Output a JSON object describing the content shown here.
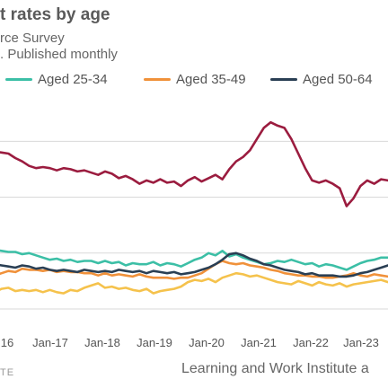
{
  "chart_data": {
    "type": "line",
    "title": "t rates by age",
    "subtitle": "rce Survey",
    "subtitle2": ". Published monthly",
    "x_tick_labels": [
      "16",
      "Jan-17",
      "Jan-18",
      "Jan-19",
      "Jan-20",
      "Jan-21",
      "Jan-22",
      "Jan-23"
    ],
    "grid": "horizontal",
    "series": [
      {
        "name": "",
        "color": "#9b1c3f",
        "values": [
          14.1,
          14.0,
          13.9,
          13.5,
          13.2,
          12.8,
          12.6,
          12.7,
          12.6,
          12.4,
          12.6,
          12.5,
          12.3,
          12.4,
          12.2,
          12.0,
          12.3,
          12.1,
          11.7,
          11.9,
          11.6,
          11.2,
          11.5,
          11.3,
          11.6,
          11.3,
          11.4,
          11.0,
          11.5,
          11.8,
          11.4,
          11.7,
          12.0,
          11.6,
          12.5,
          13.2,
          13.6,
          14.2,
          15.2,
          16.2,
          16.7,
          16.4,
          16.2,
          15.2,
          13.9,
          12.6,
          11.5,
          11.3,
          11.5,
          11.2,
          10.8,
          9.2,
          9.9,
          11.0,
          11.5,
          11.2,
          11.6,
          11.5
        ]
      },
      {
        "name": "Aged 25-34",
        "color": "#3cbfa6",
        "values": [
          5.3,
          5.2,
          5.1,
          5.1,
          4.9,
          5.0,
          4.8,
          4.6,
          4.4,
          4.5,
          4.3,
          4.4,
          4.2,
          4.3,
          4.3,
          4.1,
          4.3,
          4.1,
          4.2,
          3.9,
          4.1,
          4.0,
          4.0,
          4.2,
          3.9,
          4.1,
          4.0,
          3.8,
          4.1,
          4.4,
          4.6,
          5.0,
          4.8,
          5.2,
          4.7,
          4.9,
          4.6,
          4.4,
          4.2,
          4.0,
          4.1,
          4.3,
          4.2,
          4.4,
          4.2,
          4.0,
          4.1,
          3.8,
          4.0,
          3.9,
          3.7,
          3.5,
          3.8,
          4.1,
          4.3,
          4.4,
          4.6,
          4.6
        ]
      },
      {
        "name": "Aged 35-49",
        "color": "#f0913a",
        "values": [
          3.0,
          3.2,
          3.4,
          3.3,
          3.6,
          3.5,
          3.5,
          3.4,
          3.5,
          3.3,
          3.4,
          3.3,
          3.3,
          3.2,
          3.2,
          3.0,
          3.2,
          3.0,
          3.1,
          3.0,
          2.9,
          3.1,
          2.9,
          2.8,
          2.8,
          2.8,
          2.7,
          2.8,
          2.8,
          3.0,
          3.2,
          3.6,
          4.0,
          4.3,
          4.1,
          4.0,
          4.1,
          3.9,
          3.8,
          3.7,
          3.5,
          3.4,
          3.2,
          3.1,
          3.0,
          3.0,
          2.9,
          2.9,
          2.8,
          2.8,
          2.9,
          3.0,
          3.2,
          3.0,
          2.9,
          3.1,
          3.0,
          2.9
        ]
      },
      {
        "name": "Aged 50-64",
        "color": "#2a3f54",
        "values": [
          4.0,
          3.9,
          3.8,
          3.7,
          3.9,
          3.8,
          3.6,
          3.7,
          3.5,
          3.4,
          3.5,
          3.4,
          3.3,
          3.5,
          3.4,
          3.3,
          3.4,
          3.3,
          3.5,
          3.4,
          3.3,
          3.4,
          3.2,
          3.4,
          3.3,
          3.2,
          3.3,
          3.1,
          3.2,
          3.3,
          3.5,
          3.7,
          4.0,
          4.4,
          4.9,
          5.0,
          4.8,
          4.5,
          4.3,
          4.0,
          3.9,
          3.7,
          3.5,
          3.4,
          3.3,
          3.1,
          3.2,
          3.0,
          3.0,
          3.0,
          2.9,
          2.9,
          3.0,
          3.2,
          3.3,
          3.5,
          3.7,
          3.9
        ]
      },
      {
        "name": "",
        "color": "#f5c24c",
        "values": [
          1.5,
          1.8,
          1.9,
          1.6,
          1.7,
          1.6,
          1.7,
          1.5,
          1.7,
          1.5,
          1.4,
          1.7,
          1.6,
          1.9,
          2.1,
          2.3,
          1.9,
          2.0,
          1.8,
          1.9,
          1.7,
          1.6,
          1.8,
          1.4,
          1.6,
          1.7,
          1.8,
          2.0,
          2.4,
          2.6,
          2.5,
          2.7,
          2.4,
          2.8,
          3.0,
          3.2,
          3.1,
          2.9,
          3.0,
          2.8,
          2.6,
          2.4,
          2.3,
          2.2,
          2.5,
          2.3,
          2.1,
          2.4,
          2.2,
          2.1,
          2.3,
          2.0,
          2.2,
          2.3,
          2.4,
          2.5,
          2.6,
          2.4
        ]
      }
    ]
  },
  "footer": {
    "source_label": "TE",
    "credit": "Learning and Work Institute a"
  }
}
